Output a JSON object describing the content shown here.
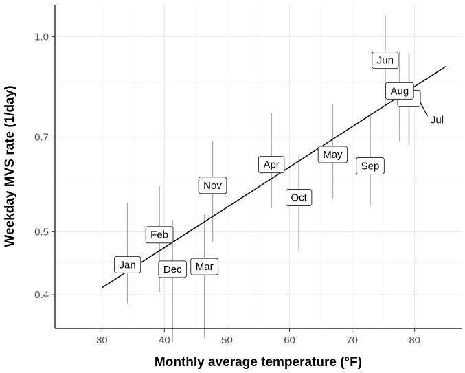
{
  "chart_data": {
    "type": "scatter",
    "xlabel": "Monthly average temperature (°F)",
    "ylabel": "Weekday MVS rate (1/day)",
    "xlim": [
      22.5,
      87.5
    ],
    "ylim": [
      0.355,
      1.12
    ],
    "y_scale": "log",
    "x_ticks": [
      30,
      40,
      50,
      60,
      70,
      80
    ],
    "y_ticks": [
      0.4,
      0.5,
      0.7,
      1.0
    ],
    "y_tick_labels": [
      "0.4",
      "0.5",
      "0.7",
      "1.0"
    ],
    "grid": true,
    "legend": "none",
    "points": [
      {
        "label": "Jan",
        "x": 34.1,
        "y": 0.445,
        "lo": 0.388,
        "hi": 0.555
      },
      {
        "label": "Feb",
        "x": 39.2,
        "y": 0.495,
        "lo": 0.404,
        "hi": 0.588
      },
      {
        "label": "Dec",
        "x": 41.3,
        "y": 0.438,
        "lo": 0.338,
        "hi": 0.522
      },
      {
        "label": "Mar",
        "x": 46.4,
        "y": 0.442,
        "lo": 0.343,
        "hi": 0.532
      },
      {
        "label": "Nov",
        "x": 47.7,
        "y": 0.59,
        "lo": 0.483,
        "hi": 0.69
      },
      {
        "label": "Apr",
        "x": 57.1,
        "y": 0.635,
        "lo": 0.544,
        "hi": 0.762
      },
      {
        "label": "Oct",
        "x": 61.5,
        "y": 0.565,
        "lo": 0.467,
        "hi": 0.656
      },
      {
        "label": "May",
        "x": 66.9,
        "y": 0.658,
        "lo": 0.563,
        "hi": 0.787
      },
      {
        "label": "Sep",
        "x": 72.9,
        "y": 0.632,
        "lo": 0.548,
        "hi": 0.762
      },
      {
        "label": "Jun",
        "x": 75.3,
        "y": 0.92,
        "lo": 0.78,
        "hi": 1.08
      },
      {
        "label": "Aug",
        "x": 77.6,
        "y": 0.825,
        "lo": 0.69,
        "hi": 0.95
      },
      {
        "label": "Jul",
        "x": 79.1,
        "y": 0.803,
        "lo": 0.68,
        "hi": 0.945
      }
    ],
    "trend_line": {
      "x": [
        30,
        85
      ],
      "y": [
        0.41,
        0.9
      ]
    }
  }
}
